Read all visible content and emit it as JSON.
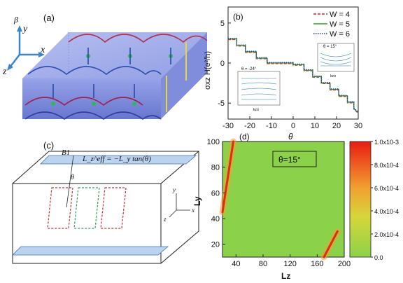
{
  "panel_a": {
    "label": "(a)",
    "axes": {
      "x": "x",
      "y": "y",
      "z": "z",
      "beta": "β"
    }
  },
  "panel_b": {
    "label": "(b)",
    "chart_data": {
      "type": "line",
      "xlabel": "θ",
      "ylabel": "σxz H(e²/h)",
      "xlim": [
        -30,
        30
      ],
      "ylim": [
        -7,
        7
      ],
      "xticks": [
        "-30",
        "-20",
        "-10",
        "0",
        "10",
        "20",
        "30"
      ],
      "yticks": [
        "5",
        "0",
        "-5"
      ],
      "legend": [
        "W = 4",
        "W = 5",
        "W = 6"
      ],
      "legend_colors": [
        "#e02020",
        "#33a02c",
        "#1f2fa0"
      ],
      "series_steps": [
        {
          "x": -30,
          "y": 3.0
        },
        {
          "x": -26,
          "y": 3.0
        },
        {
          "x": -26,
          "y": 2.2
        },
        {
          "x": -22,
          "y": 2.2
        },
        {
          "x": -22,
          "y": 1.4
        },
        {
          "x": -17,
          "y": 1.4
        },
        {
          "x": -17,
          "y": 0.6
        },
        {
          "x": -12,
          "y": 0.6
        },
        {
          "x": -12,
          "y": 0.0
        },
        {
          "x": 0,
          "y": 0.0
        },
        {
          "x": 0,
          "y": -0.2
        },
        {
          "x": 5,
          "y": -0.2
        },
        {
          "x": 5,
          "y": -0.9
        },
        {
          "x": 9,
          "y": -0.9
        },
        {
          "x": 9,
          "y": -1.7
        },
        {
          "x": 13,
          "y": -1.7
        },
        {
          "x": 13,
          "y": -2.5
        },
        {
          "x": 17,
          "y": -2.5
        },
        {
          "x": 17,
          "y": -3.3
        },
        {
          "x": 21,
          "y": -3.3
        },
        {
          "x": 21,
          "y": -4.1
        },
        {
          "x": 25,
          "y": -4.1
        },
        {
          "x": 25,
          "y": -4.9
        },
        {
          "x": 28,
          "y": -4.9
        },
        {
          "x": 28,
          "y": -5.7
        },
        {
          "x": 30,
          "y": -6.2
        }
      ],
      "inset_left": {
        "title": "θ = -24°",
        "ylabel": "Energy",
        "xlabel": "kzα",
        "yticks": [
          "16",
          "14",
          "12",
          "10",
          "8"
        ],
        "xticks": [
          "-4",
          "-2",
          "0"
        ]
      },
      "inset_right": {
        "title": "θ = 15°",
        "ylabel": "Energy",
        "xlabel": "kzα",
        "yticks": [
          "16",
          "14",
          "12",
          "10",
          "8"
        ],
        "xticks": [
          "-4",
          "-2",
          "0"
        ]
      }
    }
  },
  "panel_c": {
    "label": "(c)",
    "b1": "B1",
    "theta": "θ",
    "formula": "L_z^eff = −L_y tan(θ)",
    "axes": {
      "x": "x",
      "y": "y",
      "z": "z"
    }
  },
  "panel_d": {
    "label": "(d)",
    "annotation": "θ=15°",
    "chart_data": {
      "type": "heatmap",
      "xlabel": "Lz",
      "ylabel": "Ly",
      "xlim": [
        20,
        200
      ],
      "ylim": [
        10,
        100
      ],
      "xticks": [
        "40",
        "80",
        "120",
        "160",
        "200"
      ],
      "yticks": [
        "100",
        "80",
        "60",
        "40",
        "20"
      ],
      "colorbar_ticks": [
        "1.0x10-3",
        "8.0x10-4",
        "6.0x10-4",
        "4.0x10-4",
        "2.0x10-4",
        "0.0"
      ],
      "colorbar_range": [
        0,
        0.001
      ],
      "background_value": 0.0002,
      "ridges": [
        {
          "from": [
            20,
            45
          ],
          "to": [
            36,
            100
          ]
        },
        {
          "from": [
            170,
            10
          ],
          "to": [
            190,
            30
          ]
        }
      ]
    }
  }
}
